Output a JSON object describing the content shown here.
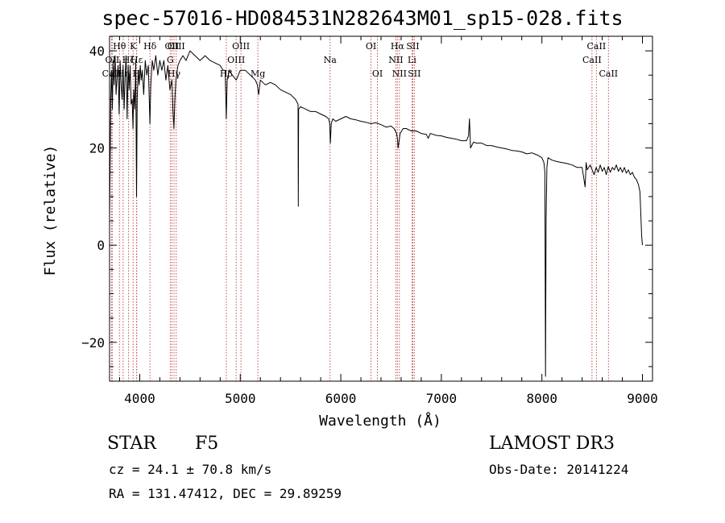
{
  "chart_data": {
    "type": "line",
    "title": "spec-57016-HD084531N282643M01_sp15-028.fits",
    "xlabel": "Wavelength (Å)",
    "ylabel": "Flux (relative)",
    "xlim": [
      3700,
      9100
    ],
    "ylim": [
      -28,
      43
    ],
    "xticks": [
      4000,
      5000,
      6000,
      7000,
      8000,
      9000
    ],
    "yticks": [
      -20,
      0,
      20,
      40
    ],
    "x_minor_step": 200,
    "y_minor_step": 5,
    "line_color": "#000000",
    "marker_color": "#c0504d",
    "series": [
      {
        "name": "spectrum",
        "x": [
          3700,
          3705,
          3712,
          3720,
          3728,
          3735,
          3745,
          3755,
          3765,
          3775,
          3785,
          3795,
          3805,
          3815,
          3825,
          3835,
          3845,
          3855,
          3865,
          3875,
          3885,
          3895,
          3905,
          3915,
          3925,
          3933,
          3940,
          3950,
          3960,
          3968,
          3975,
          3985,
          3995,
          4005,
          4015,
          4025,
          4040,
          4055,
          4070,
          4085,
          4095,
          4101,
          4110,
          4125,
          4140,
          4160,
          4180,
          4200,
          4220,
          4240,
          4260,
          4280,
          4300,
          4320,
          4330,
          4340,
          4350,
          4360,
          4380,
          4400,
          4430,
          4460,
          4500,
          4550,
          4600,
          4650,
          4700,
          4750,
          4800,
          4830,
          4850,
          4861,
          4870,
          4890,
          4920,
          4960,
          5000,
          5050,
          5100,
          5150,
          5170,
          5183,
          5200,
          5250,
          5300,
          5350,
          5400,
          5450,
          5500,
          5550,
          5575,
          5577,
          5580,
          5600,
          5650,
          5700,
          5750,
          5800,
          5850,
          5880,
          5890,
          5896,
          5905,
          5920,
          5950,
          6000,
          6050,
          6100,
          6150,
          6200,
          6250,
          6300,
          6350,
          6400,
          6450,
          6500,
          6530,
          6555,
          6563,
          6570,
          6590,
          6620,
          6650,
          6700,
          6750,
          6800,
          6850,
          6870,
          6890,
          6920,
          6950,
          7000,
          7050,
          7100,
          7150,
          7200,
          7250,
          7270,
          7280,
          7290,
          7320,
          7350,
          7400,
          7450,
          7500,
          7550,
          7600,
          7650,
          7700,
          7750,
          7800,
          7850,
          7900,
          7950,
          8000,
          8020,
          8030,
          8036,
          8042,
          8050,
          8060,
          8100,
          8150,
          8200,
          8250,
          8300,
          8350,
          8400,
          8430,
          8440,
          8450,
          8480,
          8500,
          8520,
          8540,
          8560,
          8580,
          8600,
          8620,
          8640,
          8660,
          8680,
          8700,
          8720,
          8740,
          8760,
          8780,
          8800,
          8820,
          8840,
          8860,
          8880,
          8900,
          8920,
          8940,
          8960,
          8975,
          8985,
          8992,
          9000
        ],
        "values": [
          5,
          15,
          30,
          36,
          28,
          38,
          33,
          39,
          31,
          35,
          37,
          27,
          38,
          33,
          30,
          37,
          28,
          35,
          39,
          26,
          37,
          32,
          37,
          29,
          30,
          24,
          32,
          28,
          38,
          10,
          30,
          36,
          33,
          37,
          34,
          36,
          31,
          38,
          35,
          37,
          30,
          25,
          33,
          38,
          36,
          39,
          35,
          38,
          36,
          38,
          34,
          37,
          32,
          34,
          28,
          24,
          30,
          34,
          37,
          38,
          39,
          38,
          40,
          39,
          38,
          39,
          38,
          37.5,
          37,
          36,
          36,
          26,
          34,
          36,
          35,
          34,
          36,
          36,
          35,
          34,
          33,
          31,
          34,
          33,
          33.5,
          33,
          32,
          31.5,
          31,
          30,
          29,
          8,
          28,
          28.5,
          28,
          27.5,
          27.5,
          27,
          26.5,
          26,
          25,
          21,
          25,
          26,
          25.5,
          26,
          26.5,
          26,
          25.8,
          25.5,
          25.3,
          25,
          25.2,
          24.8,
          24.3,
          24.5,
          24,
          23,
          22,
          20,
          23,
          24,
          24,
          23.5,
          23.5,
          23,
          22.8,
          22,
          23,
          22.8,
          22.6,
          22.5,
          22.2,
          22,
          21.8,
          21.5,
          21.5,
          22.5,
          26,
          20,
          21.2,
          21,
          21,
          20.5,
          20.5,
          20.2,
          20,
          19.8,
          19.5,
          19.4,
          19.2,
          18.8,
          19,
          18.6,
          18,
          17,
          15,
          -27,
          5,
          16,
          18,
          17.5,
          17.2,
          17,
          16.8,
          16.5,
          16,
          16,
          12,
          17,
          15.5,
          16.5,
          15.5,
          14.5,
          16,
          15,
          16.5,
          15.2,
          16,
          14.5,
          16.2,
          15,
          16,
          15.5,
          16.5,
          15.2,
          16,
          15,
          16,
          14.8,
          15.5,
          14.5,
          15,
          14,
          13.5,
          12.5,
          11,
          6,
          2,
          0
        ]
      }
    ],
    "lines": [
      {
        "label": "Hθ",
        "wavelength": 3798,
        "row": 1
      },
      {
        "label": "OII",
        "wavelength": 3727,
        "row": 2
      },
      {
        "label": "CaII",
        "wavelength": 3720,
        "row": 3
      },
      {
        "label": "Hη",
        "wavelength": 3835,
        "row": 3
      },
      {
        "label": "Hζ",
        "wavelength": 3889,
        "row": 2
      },
      {
        "label": "K",
        "wavelength": 3934,
        "row": 1
      },
      {
        "label": "H",
        "wavelength": 3968,
        "row": 3
      },
      {
        "label": "Hε",
        "wavelength": 3970,
        "row": 2
      },
      {
        "label": "Hδ",
        "wavelength": 4102,
        "row": 1
      },
      {
        "label": "G",
        "wavelength": 4304,
        "row": 2
      },
      {
        "label": "OII",
        "wavelength": 4320,
        "row": 1
      },
      {
        "label": "Hγ",
        "wavelength": 4341,
        "row": 3
      },
      {
        "label": "OIII",
        "wavelength": 4363,
        "row": 1
      },
      {
        "label": "Hβ",
        "wavelength": 4861,
        "row": 3
      },
      {
        "label": "OIII",
        "wavelength": 4959,
        "row": 2
      },
      {
        "label": "OIII",
        "wavelength": 5007,
        "row": 1
      },
      {
        "label": "Mg",
        "wavelength": 5175,
        "row": 3
      },
      {
        "label": "Na",
        "wavelength": 5893,
        "row": 2
      },
      {
        "label": "OI",
        "wavelength": 6300,
        "row": 1
      },
      {
        "label": "OI",
        "wavelength": 6364,
        "row": 3
      },
      {
        "label": "NII",
        "wavelength": 6548,
        "row": 2
      },
      {
        "label": "Hα",
        "wavelength": 6563,
        "row": 1
      },
      {
        "label": "NII",
        "wavelength": 6583,
        "row": 3
      },
      {
        "label": "Li",
        "wavelength": 6708,
        "row": 2
      },
      {
        "label": "SII",
        "wavelength": 6716,
        "row": 1
      },
      {
        "label": "SII",
        "wavelength": 6731,
        "row": 3
      },
      {
        "label": "CaII",
        "wavelength": 8498,
        "row": 2
      },
      {
        "label": "CaII",
        "wavelength": 8542,
        "row": 1
      },
      {
        "label": "CaII",
        "wavelength": 8662,
        "row": 3
      }
    ]
  },
  "info": {
    "object_class": "STAR",
    "subclass": "F5",
    "survey": "LAMOST DR3",
    "cz": "cz = 24.1 ± 70.8 km/s",
    "obs_date": "Obs-Date: 20141224",
    "radec": "RA = 131.47412, DEC =  29.89259"
  }
}
